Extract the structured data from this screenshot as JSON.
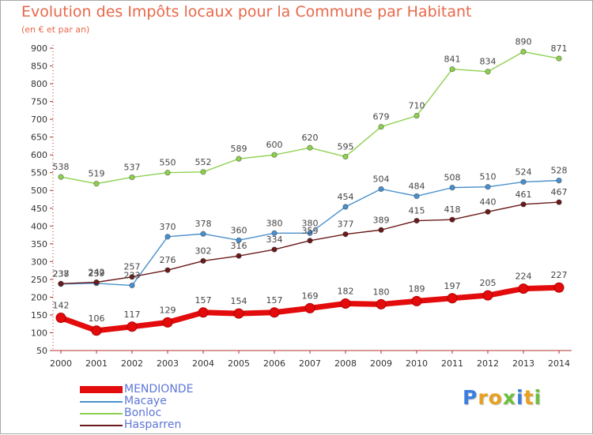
{
  "chart_data": {
    "type": "line",
    "title": "Evolution des Impôts locaux pour la Commune par Habitant",
    "subtitle": "(en € et par an)",
    "xlabel": "",
    "ylabel": "",
    "categories": [
      "2000",
      "2001",
      "2002",
      "2003",
      "2004",
      "2005",
      "2006",
      "2007",
      "2008",
      "2009",
      "2010",
      "2011",
      "2012",
      "2013",
      "2014"
    ],
    "ylim": [
      50,
      900
    ],
    "yticks": [
      50,
      100,
      150,
      200,
      250,
      300,
      350,
      400,
      450,
      500,
      550,
      600,
      650,
      700,
      750,
      800,
      850,
      900
    ],
    "grid": false,
    "legend_position": "bottom-left",
    "series": [
      {
        "name": "MENDIONDE",
        "color": "#e30b0b",
        "values": [
          142,
          106,
          117,
          129,
          157,
          154,
          157,
          169,
          182,
          180,
          189,
          197,
          205,
          224,
          227
        ]
      },
      {
        "name": "Macaye",
        "color": "#4a90cc",
        "values": [
          237,
          239,
          233,
          370,
          378,
          360,
          380,
          380,
          454,
          504,
          484,
          508,
          510,
          524,
          528
        ]
      },
      {
        "name": "Bonloc",
        "color": "#8fd14f",
        "values": [
          538,
          519,
          537,
          550,
          552,
          589,
          600,
          620,
          595,
          679,
          710,
          841,
          834,
          890,
          871
        ]
      },
      {
        "name": "Hasparren",
        "color": "#6b1a1a",
        "values": [
          238,
          242,
          257,
          276,
          302,
          316,
          334,
          359,
          377,
          389,
          415,
          418,
          440,
          461,
          467
        ]
      }
    ]
  },
  "logo": {
    "letters": [
      "P",
      "r",
      "o",
      "x",
      "i",
      "t",
      "i"
    ],
    "colors": [
      "#3c7ee0",
      "#e8a020",
      "#e8a020",
      "#6cbf3c",
      "#3c7ee0",
      "#e8a020",
      "#6cbf3c"
    ]
  }
}
